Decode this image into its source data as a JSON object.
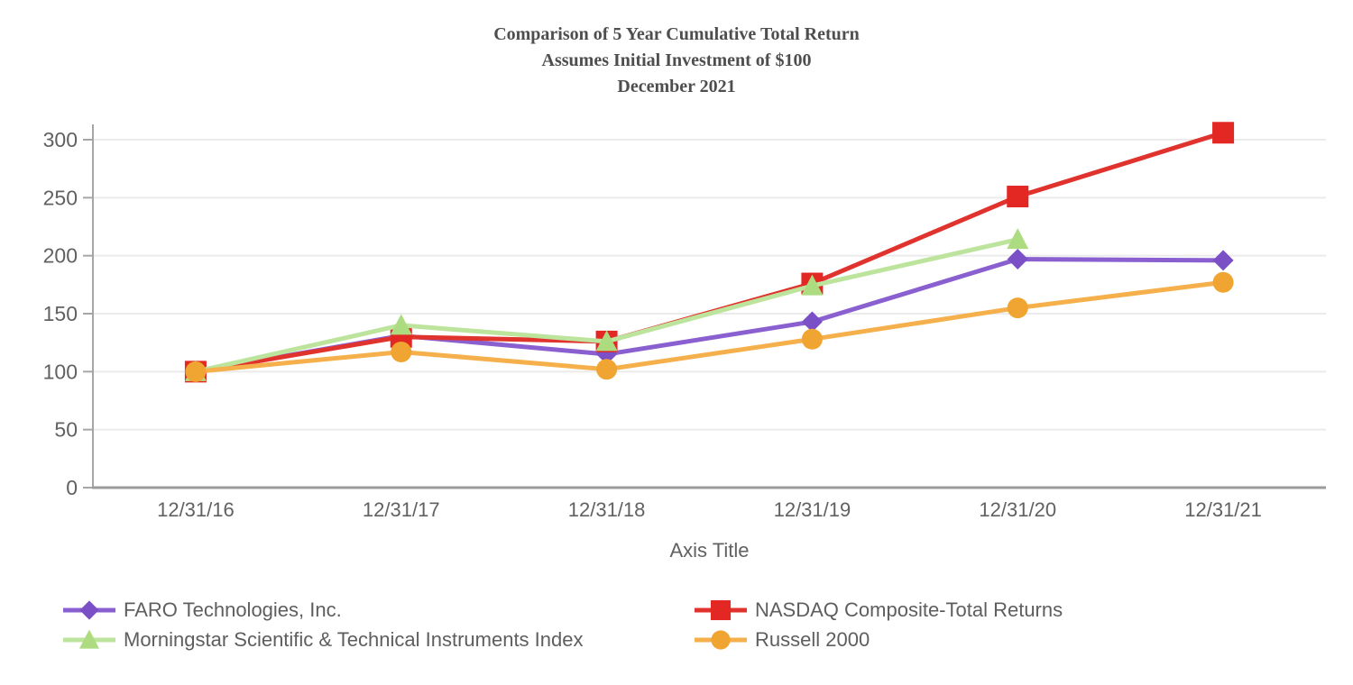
{
  "title": {
    "line1": "Comparison of 5 Year Cumulative Total Return",
    "line2": "Assumes Initial Investment of $100",
    "line3": "December 2021"
  },
  "chart_data": {
    "type": "line",
    "title": "Comparison of 5 Year Cumulative Total Return",
    "subtitle": "Assumes Initial Investment of $100 — December 2021",
    "categories": [
      "12/31/16",
      "12/31/17",
      "12/31/18",
      "12/31/19",
      "12/31/20",
      "12/31/21"
    ],
    "series": [
      {
        "name": "FARO Technologies, Inc.",
        "marker": "diamond",
        "line_color": "#8a60d0",
        "marker_color": "#7b4fc6",
        "values": [
          100,
          131,
          115,
          143,
          197,
          196
        ]
      },
      {
        "name": "NASDAQ Composite-Total Returns",
        "marker": "square",
        "line_color": "#e1332e",
        "marker_color": "#e32723",
        "values": [
          100,
          130,
          126,
          176,
          251,
          306
        ]
      },
      {
        "name": "Morningstar Scientific & Technical Instruments Index",
        "marker": "triangle",
        "line_color": "#bce49c",
        "marker_color": "#acdc7f",
        "values": [
          100,
          140,
          126,
          174,
          214,
          null
        ]
      },
      {
        "name": "Russell 2000",
        "marker": "circle",
        "line_color": "#f5af4b",
        "marker_color": "#f0a432",
        "values": [
          100,
          117,
          102,
          128,
          155,
          177
        ]
      }
    ],
    "xlabel": "Axis Title",
    "ylabel": "",
    "ylim": [
      0,
      300
    ],
    "yticks": [
      0,
      50,
      100,
      150,
      200,
      250,
      300
    ],
    "grid": true,
    "legend_position": "bottom"
  },
  "colors": {
    "gridline": "#ebebeb",
    "axis_line": "#a6a6a6",
    "x_axis_line": "#9b9b9b",
    "tick_label": "#616161",
    "title_text": "#4e4e4e",
    "legend_text": "#5e5e5e",
    "background": "#ffffff"
  }
}
